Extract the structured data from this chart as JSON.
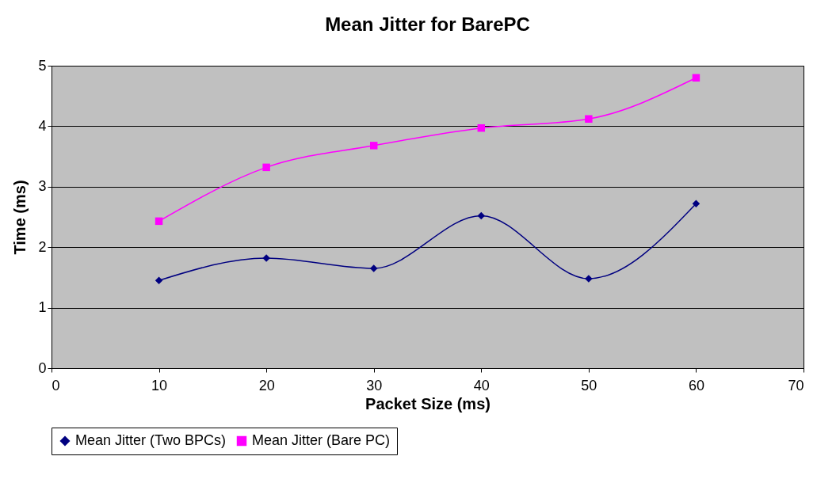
{
  "chart_data": {
    "type": "line",
    "title": "Mean Jitter for BarePC",
    "xlabel": "Packet Size (ms)",
    "ylabel": "Time (ms)",
    "x": [
      10,
      20,
      30,
      40,
      50,
      60
    ],
    "series": [
      {
        "name": "Mean Jitter (Two BPCs)",
        "color": "#000080",
        "marker": "diamond",
        "values": [
          1.45,
          1.82,
          1.65,
          2.52,
          1.48,
          2.72
        ]
      },
      {
        "name": "Mean Jitter (Bare PC)",
        "color": "#ff00ff",
        "marker": "square",
        "values": [
          2.43,
          3.32,
          3.68,
          3.97,
          4.12,
          4.8
        ]
      }
    ],
    "xlim": [
      0,
      70
    ],
    "xticks": [
      0,
      10,
      20,
      30,
      40,
      50,
      60,
      70
    ],
    "ylim": [
      0,
      5
    ],
    "yticks": [
      0,
      1,
      2,
      3,
      4,
      5
    ],
    "grid": "y",
    "legend": "bottom",
    "line_style": "solid"
  }
}
